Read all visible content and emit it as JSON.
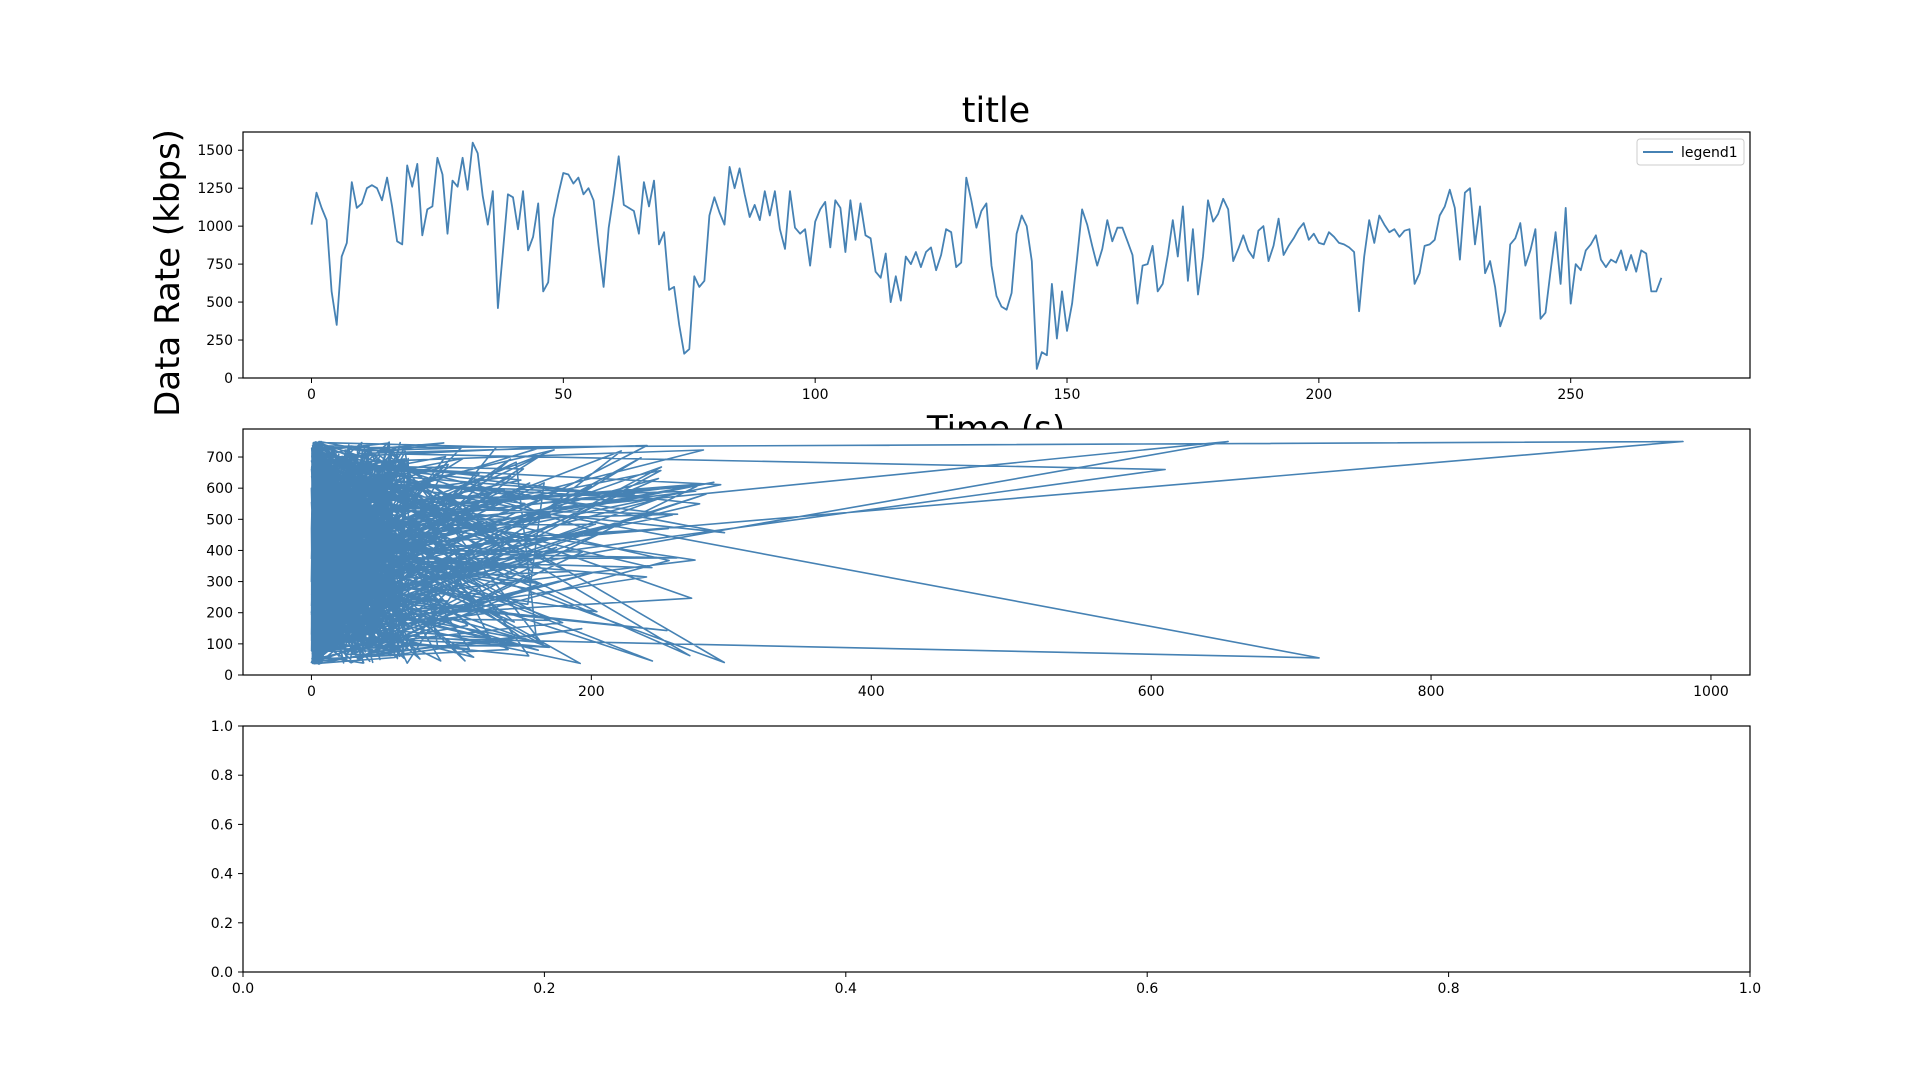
{
  "colors": {
    "series": "#4682b4",
    "axes": "#000000",
    "legend_border": "#cccccc"
  },
  "chart_data": [
    {
      "type": "line",
      "title": "title",
      "xlabel": "Time (s)",
      "ylabel": "Data Rate (kbps)",
      "xlim": [
        -13.6,
        285.6
      ],
      "ylim": [
        0,
        1620
      ],
      "xticks": [
        "0",
        "50",
        "100",
        "150",
        "200",
        "250"
      ],
      "yticks": [
        "0",
        "250",
        "500",
        "750",
        "1000",
        "1250",
        "1500"
      ],
      "grid": false,
      "legend_position": "top-right",
      "series": [
        {
          "name": "legend1",
          "x_start": 0,
          "x_step": 1,
          "values": [
            1010,
            1220,
            1120,
            1040,
            570,
            350,
            800,
            890,
            1290,
            1120,
            1150,
            1250,
            1270,
            1250,
            1170,
            1320,
            1130,
            900,
            880,
            1400,
            1260,
            1410,
            940,
            1110,
            1130,
            1450,
            1340,
            950,
            1300,
            1260,
            1450,
            1240,
            1550,
            1480,
            1200,
            1010,
            1230,
            460,
            830,
            1210,
            1190,
            980,
            1230,
            840,
            930,
            1150,
            570,
            630,
            1050,
            1210,
            1350,
            1340,
            1280,
            1320,
            1210,
            1250,
            1170,
            870,
            600,
            990,
            1210,
            1460,
            1140,
            1120,
            1100,
            950,
            1290,
            1130,
            1300,
            880,
            960,
            580,
            600,
            350,
            160,
            190,
            670,
            600,
            640,
            1070,
            1190,
            1090,
            1010,
            1390,
            1250,
            1380,
            1210,
            1060,
            1140,
            1040,
            1230,
            1070,
            1230,
            980,
            850,
            1230,
            990,
            950,
            980,
            740,
            1030,
            1110,
            1160,
            860,
            1170,
            1120,
            830,
            1170,
            910,
            1150,
            940,
            920,
            700,
            660,
            820,
            500,
            670,
            510,
            800,
            750,
            830,
            730,
            830,
            860,
            710,
            810,
            980,
            960,
            730,
            760,
            1320,
            1170,
            990,
            1100,
            1150,
            740,
            540,
            470,
            450,
            560,
            950,
            1070,
            1000,
            770,
            60,
            170,
            150,
            620,
            260,
            570,
            310,
            490,
            790,
            1110,
            1010,
            870,
            740,
            850,
            1040,
            900,
            990,
            990,
            900,
            810,
            490,
            740,
            750,
            870,
            570,
            620,
            810,
            1040,
            800,
            1130,
            640,
            980,
            550,
            800,
            1170,
            1030,
            1080,
            1180,
            1110,
            770,
            850,
            940,
            840,
            790,
            970,
            1000,
            770,
            870,
            1050,
            810,
            870,
            920,
            980,
            1020,
            910,
            950,
            890,
            880,
            960,
            930,
            890,
            880,
            860,
            830,
            440,
            800,
            1040,
            890,
            1070,
            1010,
            960,
            980,
            930,
            970,
            980,
            620,
            690,
            870,
            880,
            910,
            1070,
            1130,
            1240,
            1120,
            780,
            1220,
            1250,
            880,
            1130,
            690,
            770,
            600,
            340,
            440,
            880,
            920,
            1020,
            740,
            840,
            980,
            390,
            430,
            700,
            960,
            620,
            1120,
            490,
            750,
            710,
            840,
            880,
            940,
            780,
            730,
            780,
            760,
            840,
            710,
            810,
            700,
            840,
            820,
            570,
            570,
            660
          ]
        }
      ]
    },
    {
      "type": "line",
      "title": "",
      "xlabel": "",
      "ylabel": "",
      "xlim": [
        -48.9,
        1027.9
      ],
      "ylim": [
        0,
        790
      ],
      "xticks": [
        "0",
        "200",
        "400",
        "600",
        "800",
        "1000"
      ],
      "yticks": [
        "0",
        "100",
        "200",
        "300",
        "400",
        "500",
        "600",
        "700"
      ],
      "grid": false,
      "series": [
        {
          "values": []
        }
      ]
    },
    {
      "type": "line",
      "title": "",
      "xlabel": "",
      "ylabel": "",
      "xlim": [
        0,
        1
      ],
      "ylim": [
        0,
        1
      ],
      "xticks": [
        "0.0",
        "0.2",
        "0.4",
        "0.6",
        "0.8",
        "1.0"
      ],
      "yticks": [
        "0.0",
        "0.2",
        "0.4",
        "0.6",
        "0.8",
        "1.0"
      ],
      "grid": false,
      "series": []
    }
  ]
}
